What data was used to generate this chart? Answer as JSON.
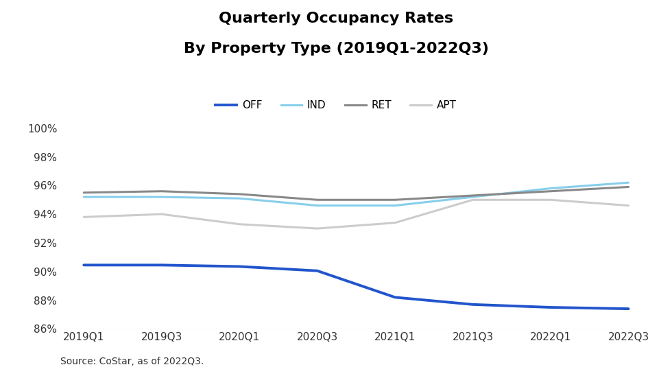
{
  "title": "Quarterly Occupancy Rates\nBy Property Type (2019Q1-2022Q3)",
  "source": "Source: CoStar, as of 2022Q3.",
  "x_labels": [
    "2019Q1",
    "2019Q3",
    "2020Q1",
    "2020Q3",
    "2021Q1",
    "2021Q3",
    "2022Q1",
    "2022Q3"
  ],
  "series": {
    "OFF": {
      "color": "#2255CC",
      "linewidth": 2.8,
      "values": [
        0.9045,
        0.9045,
        0.9035,
        0.9005,
        0.882,
        0.877,
        0.875,
        0.874
      ]
    },
    "IND": {
      "color": "#87CEEB",
      "linewidth": 2.2,
      "values": [
        0.952,
        0.952,
        0.951,
        0.946,
        0.946,
        0.952,
        0.958,
        0.962
      ]
    },
    "RET": {
      "color": "#888888",
      "linewidth": 2.2,
      "values": [
        0.955,
        0.956,
        0.954,
        0.95,
        0.95,
        0.953,
        0.956,
        0.959
      ]
    },
    "APT": {
      "color": "#cccccc",
      "linewidth": 2.2,
      "values": [
        0.938,
        0.94,
        0.933,
        0.93,
        0.934,
        0.95,
        0.95,
        0.946
      ]
    }
  },
  "ylim": [
    0.86,
    1.005
  ],
  "yticks": [
    0.86,
    0.88,
    0.9,
    0.92,
    0.94,
    0.96,
    0.98,
    1.0
  ],
  "ytick_labels": [
    "86%",
    "88%",
    "90%",
    "92%",
    "94%",
    "96%",
    "98%",
    "100%"
  ],
  "legend_order": [
    "OFF",
    "IND",
    "RET",
    "APT"
  ],
  "background_color": "#ffffff",
  "title_fontsize": 16,
  "label_fontsize": 11,
  "tick_fontsize": 11,
  "source_fontsize": 10,
  "bottom_line_color": "#cccccc"
}
